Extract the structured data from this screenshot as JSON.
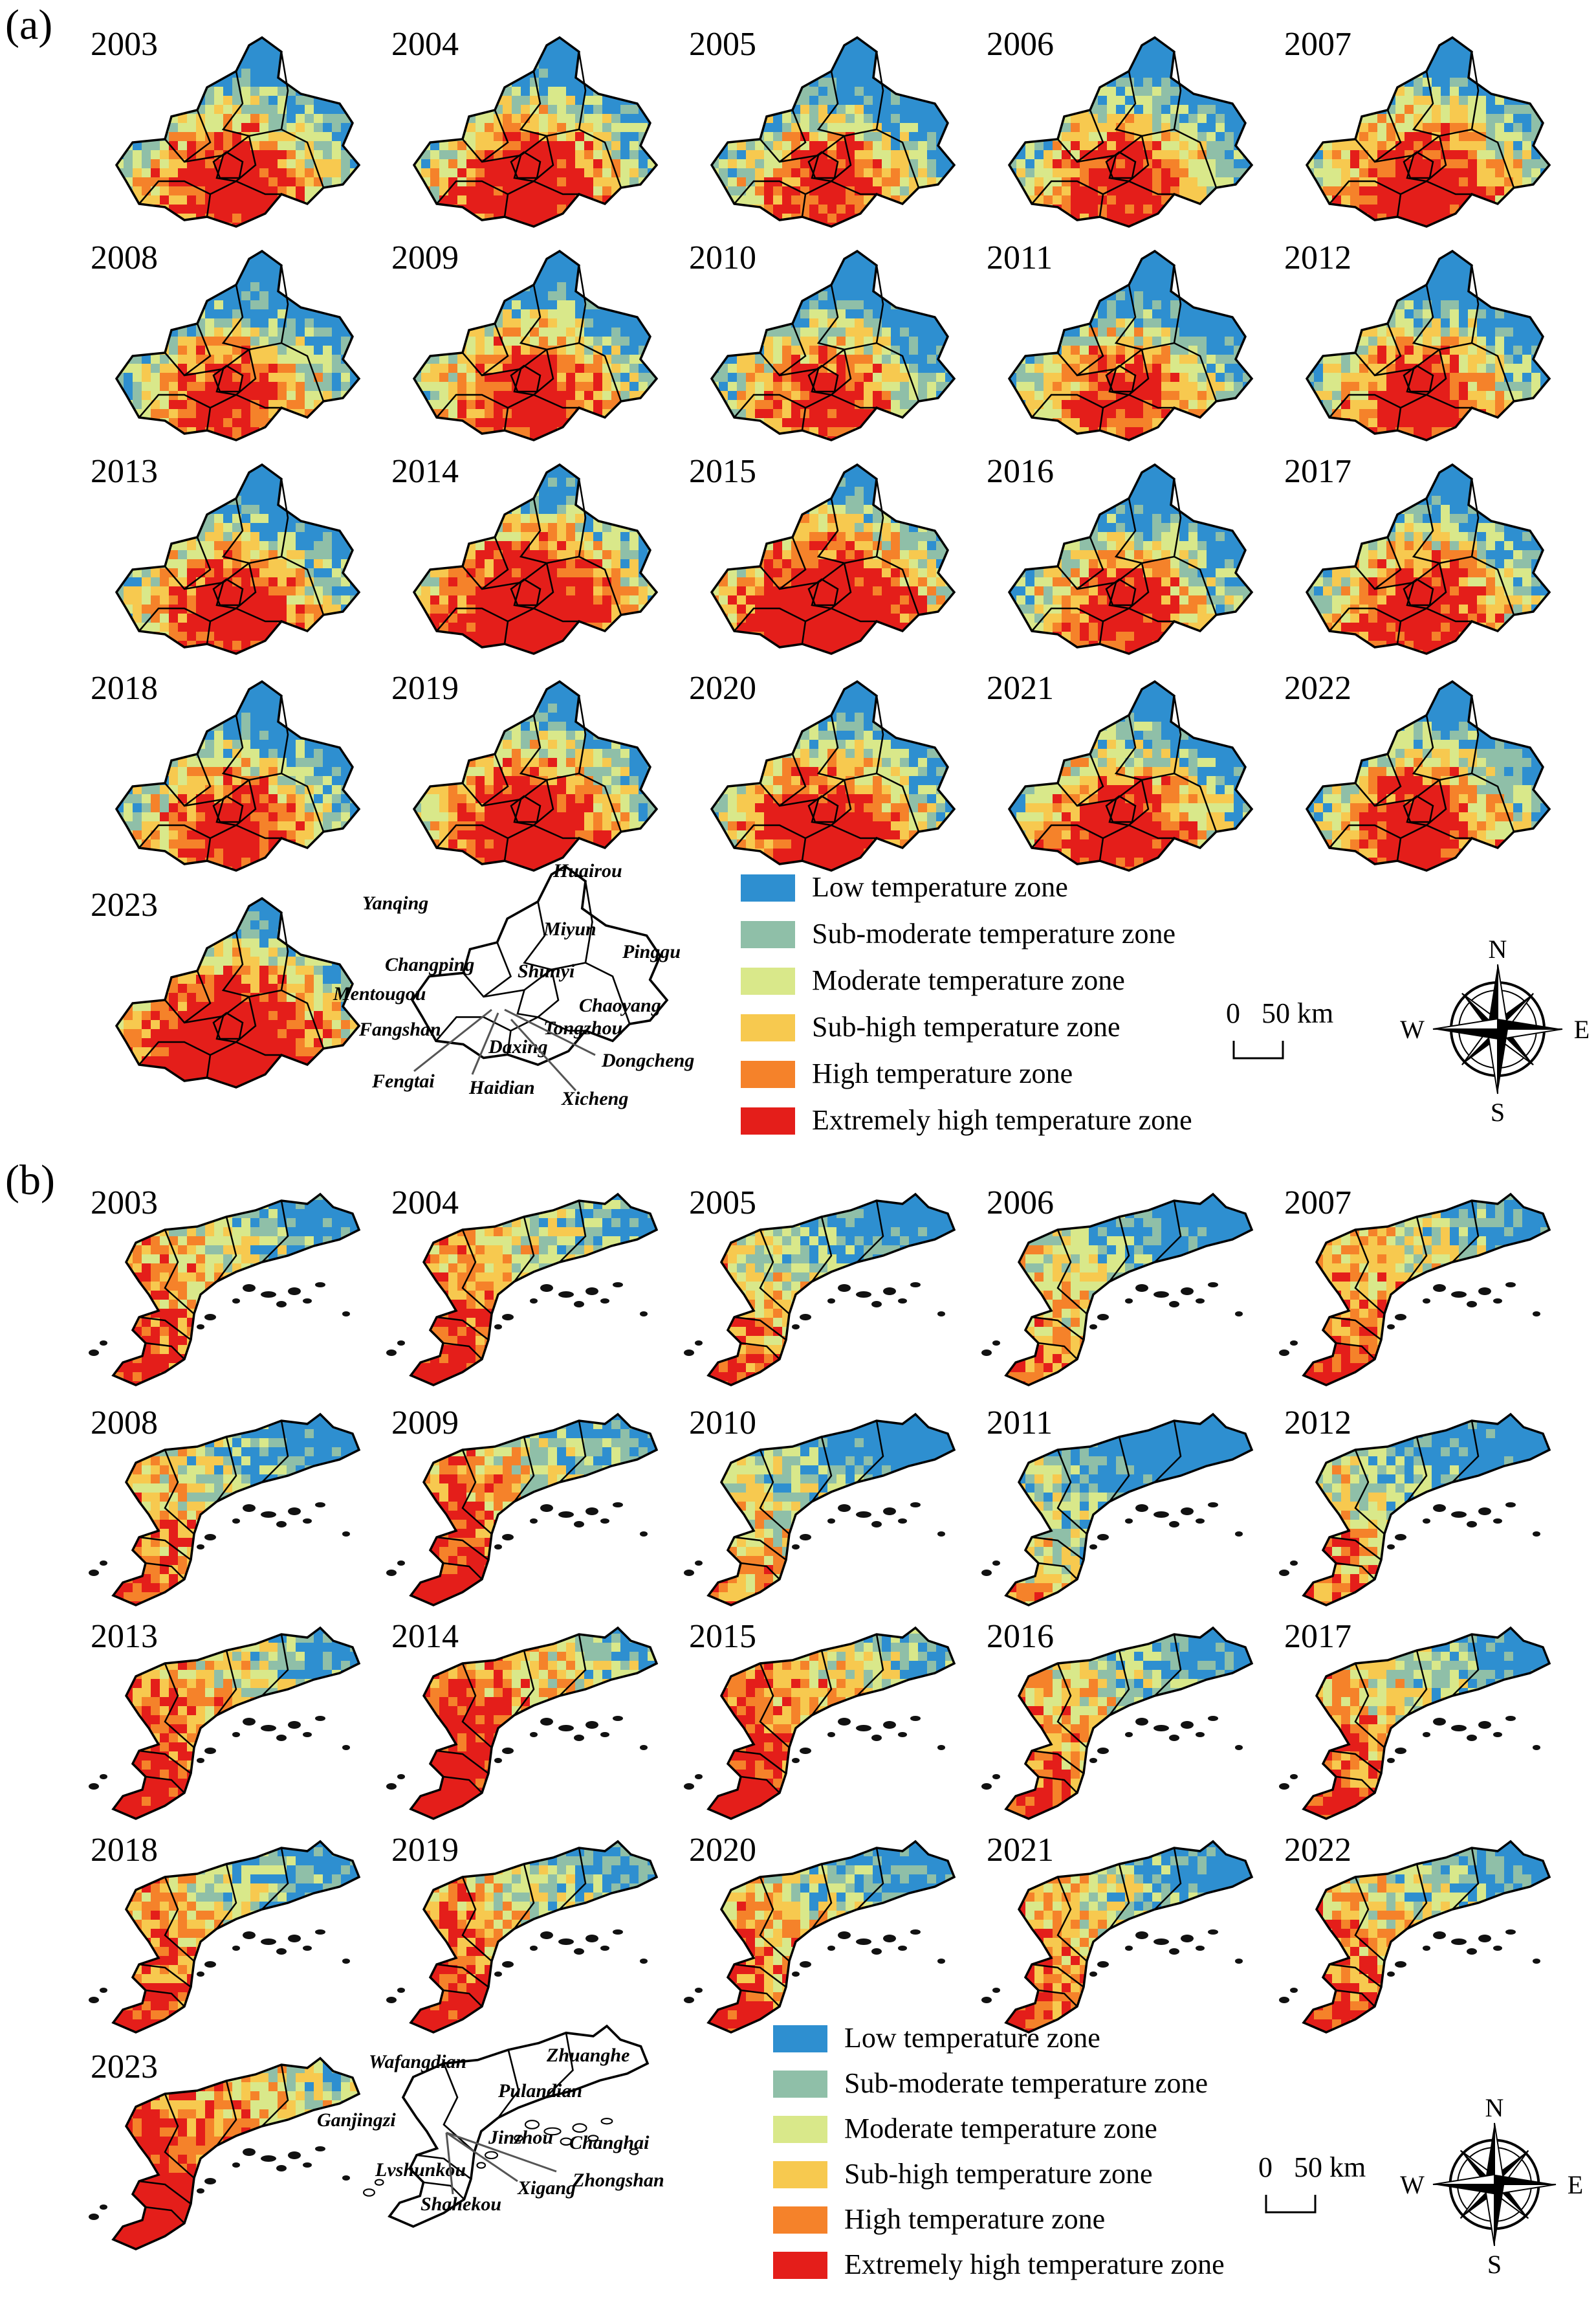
{
  "panels": [
    {
      "label": "(a)",
      "region": "beijing",
      "years": [
        "2003",
        "2004",
        "2005",
        "2006",
        "2007",
        "2008",
        "2009",
        "2010",
        "2011",
        "2012",
        "2013",
        "2014",
        "2015",
        "2016",
        "2017",
        "2018",
        "2019",
        "2020",
        "2021",
        "2022",
        "2023"
      ],
      "district_labels": [
        "Huairou",
        "Yanqing",
        "Miyun",
        "Pinggu",
        "Changping",
        "Shunyi",
        "Mentougou",
        "Chaoyang",
        "Tongzhou",
        "Fangshan",
        "Daxing",
        "Dongcheng",
        "Fengtai",
        "Haidian",
        "Xicheng"
      ],
      "legend": [
        {
          "label": "Low temperature zone",
          "color": "#2e8fd0"
        },
        {
          "label": "Sub-moderate temperature zone",
          "color": "#8fbfa8"
        },
        {
          "label": "Moderate temperature zone",
          "color": "#d9e88a"
        },
        {
          "label": "Sub-high temperature zone",
          "color": "#f7c94f"
        },
        {
          "label": "High temperature zone",
          "color": "#f5822a"
        },
        {
          "label": "Extremely high temperature zone",
          "color": "#e41e1a"
        }
      ],
      "scale": {
        "zero": "0",
        "value": "50 km"
      },
      "compass": {
        "n": "N",
        "e": "E",
        "s": "S",
        "w": "W"
      }
    },
    {
      "label": "(b)",
      "region": "dalian",
      "years": [
        "2003",
        "2004",
        "2005",
        "2006",
        "2007",
        "2008",
        "2009",
        "2010",
        "2011",
        "2012",
        "2013",
        "2014",
        "2015",
        "2016",
        "2017",
        "2018",
        "2019",
        "2020",
        "2021",
        "2022",
        "2023"
      ],
      "district_labels": [
        "Wafangdian",
        "Zhuanghe",
        "Pulandian",
        "Ganjingzi",
        "Jinzhou",
        "Changhai",
        "Lvshunkou",
        "Xigang",
        "Zhongshan",
        "Shahekou"
      ],
      "legend": [
        {
          "label": "Low temperature zone",
          "color": "#2e8fd0"
        },
        {
          "label": "Sub-moderate temperature zone",
          "color": "#8fbfa8"
        },
        {
          "label": "Moderate temperature zone",
          "color": "#d9e88a"
        },
        {
          "label": "Sub-high temperature zone",
          "color": "#f7c94f"
        },
        {
          "label": "High temperature zone",
          "color": "#f5822a"
        },
        {
          "label": "Extremely high temperature zone",
          "color": "#e41e1a"
        }
      ],
      "scale": {
        "zero": "0",
        "value": "50 km"
      },
      "compass": {
        "n": "N",
        "e": "E",
        "s": "S",
        "w": "W"
      }
    }
  ]
}
